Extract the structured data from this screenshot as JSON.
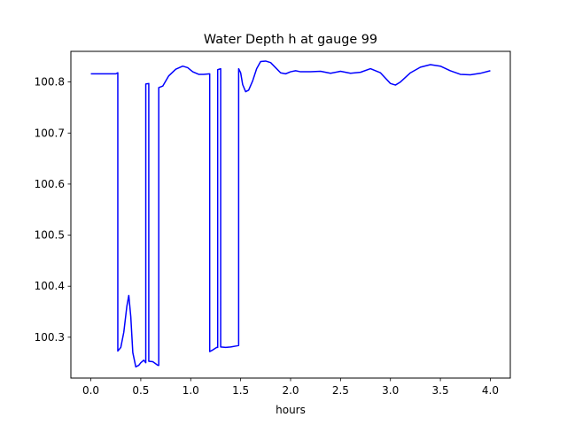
{
  "chart_data": {
    "type": "line",
    "title": "Water Depth h at gauge 99",
    "xlabel": "hours",
    "ylabel": "",
    "xlim": [
      -0.2,
      4.2
    ],
    "ylim": [
      100.22,
      100.86
    ],
    "grid": false,
    "xticks": [
      0.0,
      0.5,
      1.0,
      1.5,
      2.0,
      2.5,
      3.0,
      3.5,
      4.0
    ],
    "xtick_labels": [
      "0.0",
      "0.5",
      "1.0",
      "1.5",
      "2.0",
      "2.5",
      "3.0",
      "3.5",
      "4.0"
    ],
    "yticks": [
      100.3,
      100.4,
      100.5,
      100.6,
      100.7,
      100.8
    ],
    "ytick_labels": [
      "100.3",
      "100.4",
      "100.5",
      "100.6",
      "100.7",
      "100.8"
    ],
    "series": [
      {
        "color": "#0000ff",
        "x": [
          0.0,
          0.15,
          0.25,
          0.27,
          0.27,
          0.3,
          0.33,
          0.36,
          0.38,
          0.4,
          0.42,
          0.45,
          0.48,
          0.5,
          0.53,
          0.55,
          0.55,
          0.58,
          0.58,
          0.62,
          0.65,
          0.67,
          0.68,
          0.68,
          0.72,
          0.78,
          0.85,
          0.92,
          0.97,
          1.02,
          1.08,
          1.13,
          1.19,
          1.19,
          1.22,
          1.26,
          1.27,
          1.27,
          1.3,
          1.3,
          1.35,
          1.4,
          1.46,
          1.48,
          1.48,
          1.5,
          1.52,
          1.55,
          1.58,
          1.62,
          1.66,
          1.7,
          1.75,
          1.8,
          1.85,
          1.9,
          1.95,
          2.0,
          2.05,
          2.1,
          2.2,
          2.3,
          2.4,
          2.5,
          2.6,
          2.7,
          2.8,
          2.9,
          3.0,
          3.05,
          3.1,
          3.2,
          3.3,
          3.4,
          3.5,
          3.6,
          3.7,
          3.8,
          3.9,
          4.0
        ],
        "y": [
          100.816,
          100.816,
          100.816,
          100.818,
          100.273,
          100.28,
          100.31,
          100.36,
          100.382,
          100.34,
          100.27,
          100.242,
          100.245,
          100.25,
          100.255,
          100.25,
          100.796,
          100.797,
          100.253,
          100.252,
          100.248,
          100.245,
          100.245,
          100.789,
          100.792,
          100.812,
          100.825,
          100.831,
          100.828,
          100.82,
          100.815,
          100.815,
          100.816,
          100.272,
          100.275,
          100.28,
          100.28,
          100.824,
          100.826,
          100.281,
          100.28,
          100.281,
          100.283,
          100.284,
          100.826,
          100.818,
          100.795,
          100.781,
          100.784,
          100.802,
          100.826,
          100.84,
          100.841,
          100.838,
          100.828,
          100.818,
          100.816,
          100.82,
          100.822,
          100.82,
          100.82,
          100.821,
          100.817,
          100.821,
          100.817,
          100.819,
          100.826,
          100.818,
          100.797,
          100.794,
          100.8,
          100.818,
          100.829,
          100.834,
          100.831,
          100.822,
          100.815,
          100.814,
          100.817,
          100.822
        ]
      }
    ]
  }
}
